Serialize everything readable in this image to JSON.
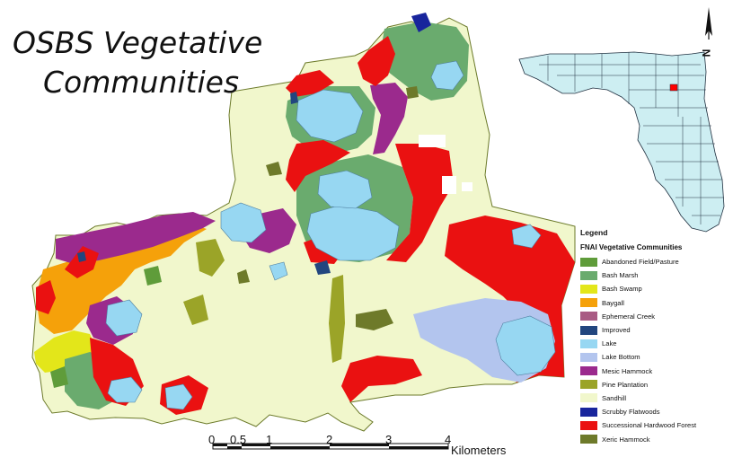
{
  "title": {
    "line1": "OSBS Vegetative",
    "line2": "Communities"
  },
  "legend": {
    "heading": "Legend",
    "subheading": "FNAI Vegetative Communities",
    "items": [
      {
        "label": "Abandoned Field/Pasture",
        "color": "#5f9c3a"
      },
      {
        "label": "Bash Marsh",
        "color": "#6aab6e"
      },
      {
        "label": "Bash Swamp",
        "color": "#e3e61a"
      },
      {
        "label": "Baygall",
        "color": "#f5a10a"
      },
      {
        "label": "Ephemeral Creek",
        "color": "#a95b84"
      },
      {
        "label": "Improved",
        "color": "#22467f"
      },
      {
        "label": "Lake",
        "color": "#97d7f2"
      },
      {
        "label": "Lake Bottom",
        "color": "#b3c5ee"
      },
      {
        "label": "Mesic Hammock",
        "color": "#9b2a8d"
      },
      {
        "label": "Pine Plantation",
        "color": "#9ba428"
      },
      {
        "label": "Sandhill",
        "color": "#f1f7cc"
      },
      {
        "label": "Scrubby Flatwoods",
        "color": "#18259c"
      },
      {
        "label": "Successional Hardwood Forest",
        "color": "#ea1111"
      },
      {
        "label": "Xeric Hammock",
        "color": "#6e7a2a"
      }
    ]
  },
  "scalebar": {
    "ticks": [
      "0",
      "0.5",
      "1",
      "2",
      "3",
      "4"
    ],
    "unit": "Kilometers"
  },
  "north_arrow": {
    "label": "N"
  },
  "inset": {
    "fill": "#cdeef2",
    "highlight_color": "#ff0000"
  }
}
